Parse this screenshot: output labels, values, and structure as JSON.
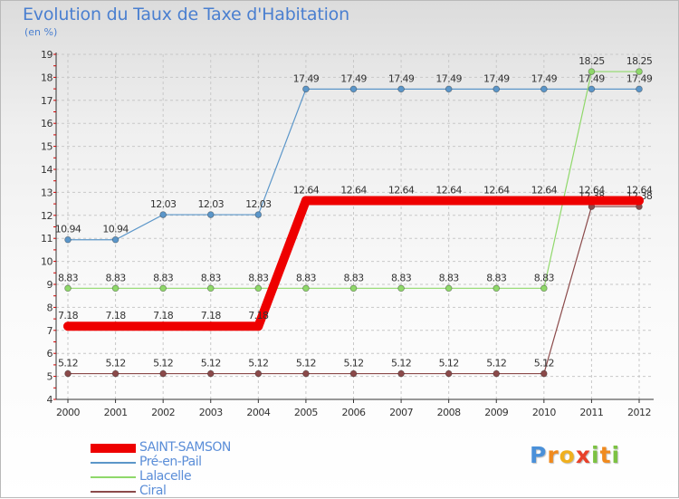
{
  "header": {
    "title": "Evolution du Taux de Taxe d'Habitation",
    "subtitle": "(en %)"
  },
  "logo": {
    "letters": [
      "P",
      "r",
      "o",
      "x",
      "i",
      "t",
      "i"
    ],
    "colors": [
      "#4a90d9",
      "#f08a1e",
      "#f0b01e",
      "#e8412a",
      "#7cc242",
      "#f08a1e",
      "#7cc242"
    ]
  },
  "chart_data": {
    "type": "line",
    "x": [
      2000,
      2001,
      2002,
      2003,
      2004,
      2005,
      2006,
      2007,
      2008,
      2009,
      2010,
      2011,
      2012
    ],
    "ylim": [
      4,
      19
    ],
    "yticks": [
      4,
      5,
      6,
      7,
      8,
      9,
      10,
      11,
      12,
      13,
      14,
      15,
      16,
      17,
      18,
      19
    ],
    "grid": true,
    "legend_placement": "bottom-left",
    "series": [
      {
        "name": "Pré-en-Pail",
        "color": "#5b96c9",
        "values": [
          10.94,
          10.94,
          12.03,
          12.03,
          12.03,
          17.49,
          17.49,
          17.49,
          17.49,
          17.49,
          17.49,
          17.49,
          17.49
        ],
        "labels": [
          "10.94",
          "10.94",
          "12.03",
          "12.03",
          "12.03",
          "17.49",
          "17.49",
          "17.49",
          "17.49",
          "17.49",
          "17.49",
          "17.49",
          "17.49"
        ]
      },
      {
        "name": "Lalacelle",
        "color": "#8fd86a",
        "values": [
          8.83,
          8.83,
          8.83,
          8.83,
          8.83,
          8.83,
          8.83,
          8.83,
          8.83,
          8.83,
          8.83,
          18.25,
          18.25
        ],
        "labels": [
          "8.83",
          "8.83",
          "8.83",
          "8.83",
          "8.83",
          "8.83",
          "8.83",
          "8.83",
          "8.83",
          "8.83",
          "8.83",
          "18.25",
          "18.25"
        ]
      },
      {
        "name": "Ciral",
        "color": "#8b4a4a",
        "values": [
          5.12,
          5.12,
          5.12,
          5.12,
          5.12,
          5.12,
          5.12,
          5.12,
          5.12,
          5.12,
          5.12,
          12.38,
          12.38
        ],
        "labels": [
          "5.12",
          "5.12",
          "5.12",
          "5.12",
          "5.12",
          "5.12",
          "5.12",
          "5.12",
          "5.12",
          "5.12",
          "5.12",
          "12.38",
          "12.38"
        ]
      },
      {
        "name": "SAINT-SAMSON",
        "color": "#ee0000",
        "highlight": true,
        "values": [
          7.18,
          7.18,
          7.18,
          7.18,
          7.18,
          12.64,
          12.64,
          12.64,
          12.64,
          12.64,
          12.64,
          12.64,
          12.64
        ],
        "labels": [
          "7.18",
          "7.18",
          "7.18",
          "7.18",
          "7.18",
          "12.64",
          "12.64",
          "12.64",
          "12.64",
          "12.64",
          "12.64",
          "12.64",
          "12.64"
        ]
      }
    ],
    "legend_order": [
      "SAINT-SAMSON",
      "Pré-en-Pail",
      "Lalacelle",
      "Ciral"
    ]
  }
}
